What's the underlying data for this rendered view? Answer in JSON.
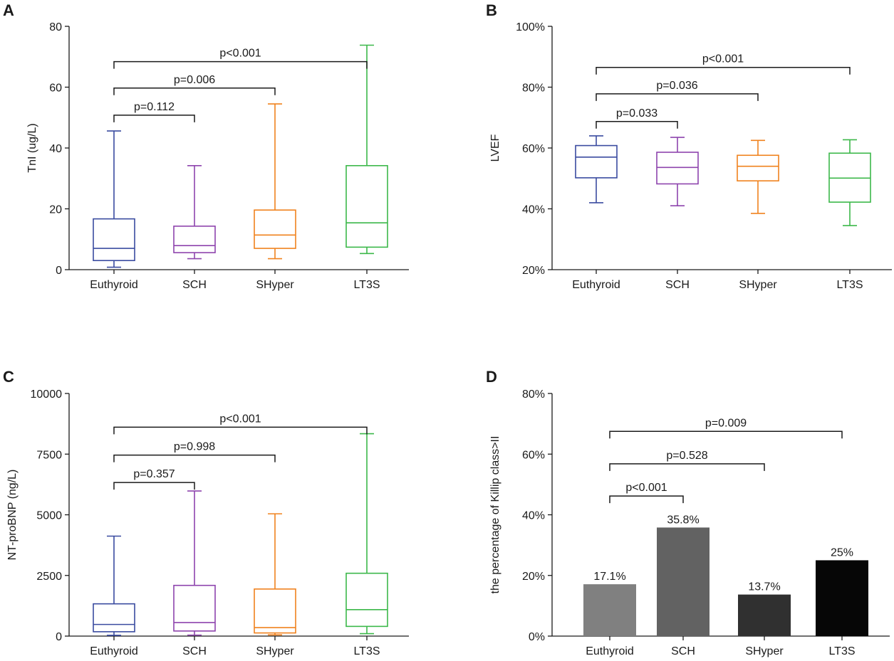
{
  "colors": {
    "Euthyroid": "#3a4ba0",
    "SCH": "#8e44ad",
    "SHyper": "#f0821e",
    "LT3S": "#3cb84a",
    "axis": "#1a1a1a",
    "bars": [
      "#808080",
      "#626262",
      "#303030",
      "#060606"
    ]
  },
  "chart_data": [
    {
      "panel": "A",
      "type": "box",
      "ylabel": "TnI (ug/L)",
      "ylim": [
        0,
        80
      ],
      "yticks": [
        0,
        20,
        40,
        60,
        80
      ],
      "ytick_labels": [
        "0",
        "20",
        "40",
        "60",
        "80"
      ],
      "categories": [
        "Euthyroid",
        "SCH",
        "SHyper",
        "LT3S"
      ],
      "boxes": [
        {
          "min": 0.8,
          "q1": 3,
          "median": 7,
          "q3": 16.7,
          "max": 45.6
        },
        {
          "min": 3.6,
          "q1": 5.6,
          "median": 7.9,
          "q3": 14.3,
          "max": 34.2
        },
        {
          "min": 3.6,
          "q1": 7,
          "median": 11.4,
          "q3": 19.6,
          "max": 54.5
        },
        {
          "min": 5.3,
          "q1": 7.4,
          "median": 15.4,
          "q3": 34.2,
          "max": 73.8
        }
      ],
      "comparisons": [
        {
          "from": 0,
          "to": 1,
          "y": 50.8,
          "label": "p=0.112"
        },
        {
          "from": 0,
          "to": 2,
          "y": 59.7,
          "label": "p=0.006"
        },
        {
          "from": 0,
          "to": 3,
          "y": 68.4,
          "label": "p<0.001"
        }
      ]
    },
    {
      "panel": "B",
      "type": "box",
      "ylabel": "LVEF",
      "ylim": [
        20,
        100
      ],
      "yticks": [
        20,
        40,
        60,
        80,
        100
      ],
      "ytick_labels": [
        "20%",
        "40%",
        "60%",
        "80%",
        "100%"
      ],
      "categories": [
        "Euthyroid",
        "SCH",
        "SHyper",
        "LT3S"
      ],
      "boxes": [
        {
          "min": 42,
          "q1": 50.2,
          "median": 57,
          "q3": 60.8,
          "max": 64
        },
        {
          "min": 41,
          "q1": 48.2,
          "median": 53.6,
          "q3": 58.6,
          "max": 63.5
        },
        {
          "min": 38.5,
          "q1": 49.2,
          "median": 54,
          "q3": 57.6,
          "max": 62.5
        },
        {
          "min": 34.5,
          "q1": 42.2,
          "median": 50.1,
          "q3": 58.3,
          "max": 62.7
        }
      ],
      "comparisons": [
        {
          "from": 0,
          "to": 1,
          "y": 68.7,
          "label": "p=0.033"
        },
        {
          "from": 0,
          "to": 2,
          "y": 77.8,
          "label": "p=0.036"
        },
        {
          "from": 0,
          "to": 3,
          "y": 86.5,
          "label": "p<0.001"
        }
      ]
    },
    {
      "panel": "C",
      "type": "box",
      "ylabel": "NT-proBNP (ng/L)",
      "ylim": [
        0,
        10000
      ],
      "yticks": [
        0,
        2500,
        5000,
        7500,
        10000
      ],
      "ytick_labels": [
        "0",
        "2500",
        "5000",
        "7500",
        "10000"
      ],
      "categories": [
        "Euthyroid",
        "SCH",
        "SHyper",
        "LT3S"
      ],
      "boxes": [
        {
          "min": 30,
          "q1": 180,
          "median": 480,
          "q3": 1330,
          "max": 4120
        },
        {
          "min": 40,
          "q1": 210,
          "median": 560,
          "q3": 2090,
          "max": 5980
        },
        {
          "min": 50,
          "q1": 130,
          "median": 350,
          "q3": 1940,
          "max": 5040
        },
        {
          "min": 100,
          "q1": 400,
          "median": 1090,
          "q3": 2590,
          "max": 8340
        }
      ],
      "comparisons": [
        {
          "from": 0,
          "to": 1,
          "y": 6330,
          "label": "p=0.357"
        },
        {
          "from": 0,
          "to": 2,
          "y": 7460,
          "label": "p=0.998"
        },
        {
          "from": 0,
          "to": 3,
          "y": 8610,
          "label": "p<0.001"
        }
      ]
    },
    {
      "panel": "D",
      "type": "bar",
      "ylabel": "the percentage of Killip class>II",
      "ylim": [
        0,
        80
      ],
      "yticks": [
        0,
        20,
        40,
        60,
        80
      ],
      "ytick_labels": [
        "0%",
        "20%",
        "40%",
        "60%",
        "80%"
      ],
      "categories": [
        "Euthyroid",
        "SCH",
        "SHyper",
        "LT3S"
      ],
      "values": [
        17.1,
        35.8,
        13.7,
        25
      ],
      "value_labels": [
        "17.1%",
        "35.8%",
        "13.7%",
        "25%"
      ],
      "comparisons": [
        {
          "from": 0,
          "to": 1,
          "y": 46.2,
          "label": "p<0.001"
        },
        {
          "from": 0,
          "to": 2,
          "y": 56.8,
          "label": "p=0.528"
        },
        {
          "from": 0,
          "to": 3,
          "y": 67.5,
          "label": "p=0.009"
        }
      ]
    }
  ]
}
